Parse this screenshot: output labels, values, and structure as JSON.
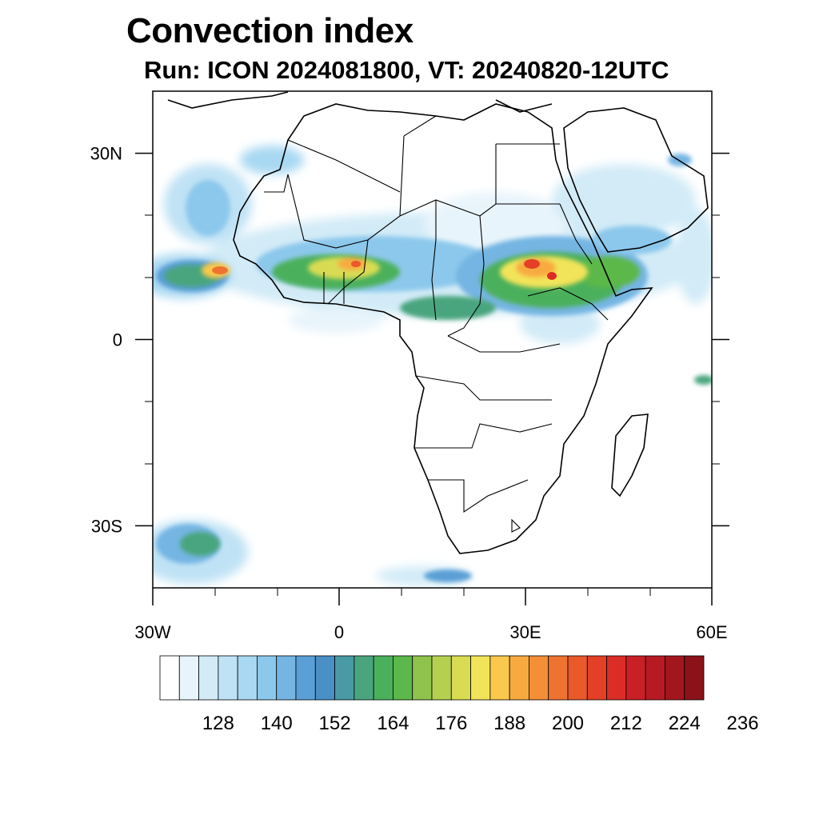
{
  "title": "Convection index",
  "subtitle": "Run: ICON 2024081800,  VT: 20240820-12UTC",
  "axes": {
    "lon_ticks": [
      {
        "value": -30,
        "label": "30W"
      },
      {
        "value": 0,
        "label": "0"
      },
      {
        "value": 30,
        "label": "30E"
      },
      {
        "value": 60,
        "label": "60E"
      }
    ],
    "lat_ticks": [
      {
        "value": 30,
        "label": "30N"
      },
      {
        "value": 0,
        "label": "0"
      },
      {
        "value": -30,
        "label": "30S"
      }
    ],
    "lon_range": [
      -30,
      60
    ],
    "lat_range": [
      -40,
      40
    ]
  },
  "colorbar": {
    "colors": [
      "#ffffff",
      "#e8f4fb",
      "#d2ebf7",
      "#bfe2f5",
      "#a8d8f2",
      "#8cc8ec",
      "#75b5e3",
      "#5a9fd6",
      "#4a8fc6",
      "#4a9aa6",
      "#4aa57e",
      "#4bb05c",
      "#5cb84a",
      "#8fc34e",
      "#b5d04f",
      "#d9dc52",
      "#f2e45a",
      "#f9c84c",
      "#f8aa41",
      "#f48f38",
      "#ef7330",
      "#e9592a",
      "#e34027",
      "#da2d26",
      "#c91f26",
      "#b71a22",
      "#a3161e",
      "#8b1219"
    ],
    "labels": [
      "128",
      "140",
      "152",
      "164",
      "176",
      "188",
      "200",
      "212",
      "224",
      "236"
    ]
  }
}
